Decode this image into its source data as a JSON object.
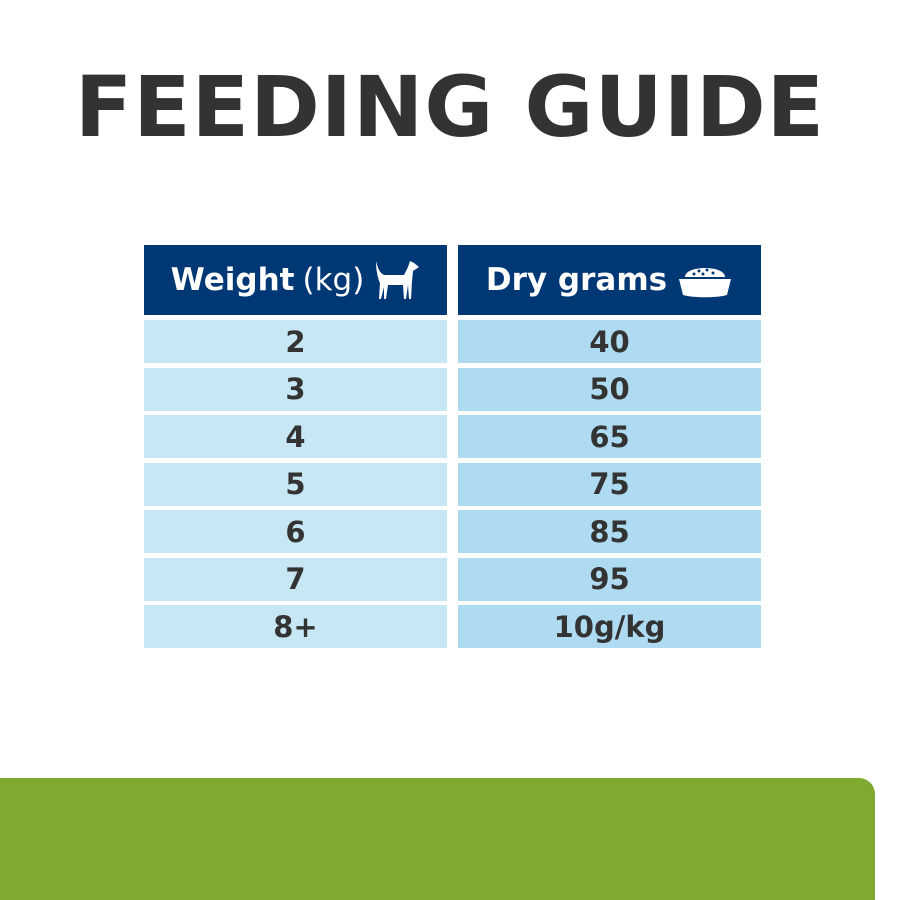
{
  "title": "FEEDING GUIDE",
  "table": {
    "headers": {
      "weight": "Weight",
      "weight_unit": "(kg)",
      "dry": "Dry grams"
    },
    "icons": {
      "weight": "dog-icon",
      "dry": "food-bowl-icon"
    },
    "rows": [
      {
        "weight": "2",
        "grams": "40"
      },
      {
        "weight": "3",
        "grams": "50"
      },
      {
        "weight": "4",
        "grams": "65"
      },
      {
        "weight": "5",
        "grams": "75"
      },
      {
        "weight": "6",
        "grams": "85"
      },
      {
        "weight": "7",
        "grams": "95"
      },
      {
        "weight": "8+",
        "grams": "10g/kg"
      }
    ]
  },
  "colors": {
    "header": "#003876",
    "left_cells": "#c7e7f5",
    "right_cells": "#aedbf1",
    "band": "#7faa2f",
    "title": "#333333"
  }
}
